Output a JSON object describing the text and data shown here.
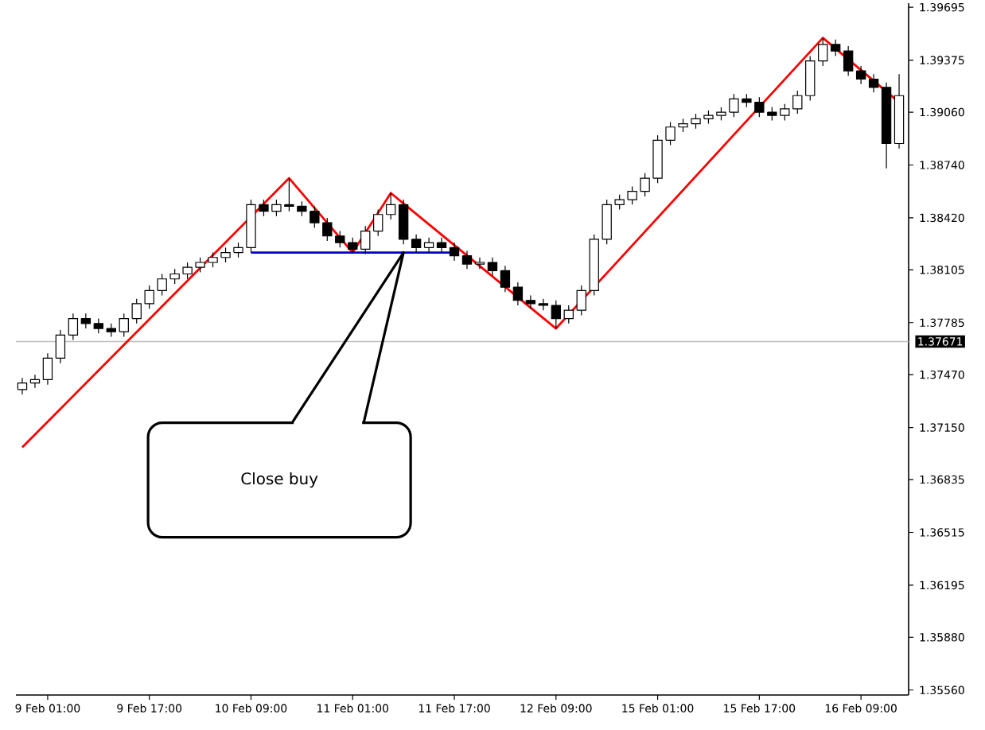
{
  "chart_data": {
    "type": "candlestick",
    "categories": [
      null,
      null,
      "9 Feb 01:00",
      null,
      null,
      null,
      null,
      null,
      null,
      null,
      "9 Feb 17:00",
      null,
      null,
      null,
      null,
      null,
      null,
      null,
      "10 Feb 09:00",
      null,
      null,
      null,
      null,
      null,
      null,
      null,
      "11 Feb 01:00",
      null,
      null,
      null,
      null,
      null,
      null,
      null,
      "11 Feb 17:00",
      null,
      null,
      null,
      null,
      null,
      null,
      null,
      "12 Feb 09:00",
      null,
      null,
      null,
      null,
      null,
      null,
      null,
      "15 Feb 01:00",
      null,
      null,
      null,
      null,
      null,
      null,
      null,
      "15 Feb 17:00",
      null,
      null,
      null,
      null,
      null,
      null,
      null,
      "16 Feb 09:00",
      null,
      null,
      null
    ],
    "ohlc": [
      [
        1.3738,
        1.3745,
        1.3735,
        1.3742
      ],
      [
        1.3742,
        1.3747,
        1.3739,
        1.3744
      ],
      [
        1.3744,
        1.376,
        1.3741,
        1.3757
      ],
      [
        1.3757,
        1.3774,
        1.3754,
        1.3771
      ],
      [
        1.3771,
        1.3784,
        1.3768,
        1.3781
      ],
      [
        1.3781,
        1.3784,
        1.3775,
        1.3778
      ],
      [
        1.3778,
        1.3781,
        1.3772,
        1.3775
      ],
      [
        1.3775,
        1.3778,
        1.377,
        1.3773
      ],
      [
        1.3773,
        1.3784,
        1.377,
        1.3781
      ],
      [
        1.3781,
        1.3793,
        1.3778,
        1.379
      ],
      [
        1.379,
        1.3801,
        1.3787,
        1.3798
      ],
      [
        1.3798,
        1.3808,
        1.3795,
        1.3805
      ],
      [
        1.3805,
        1.3811,
        1.3802,
        1.3808
      ],
      [
        1.3808,
        1.3815,
        1.3805,
        1.3812
      ],
      [
        1.3812,
        1.3818,
        1.3809,
        1.3815
      ],
      [
        1.3815,
        1.3821,
        1.3812,
        1.3818
      ],
      [
        1.3818,
        1.3824,
        1.3815,
        1.3821
      ],
      [
        1.3821,
        1.3827,
        1.3818,
        1.3824
      ],
      [
        1.3824,
        1.3853,
        1.3821,
        1.385
      ],
      [
        1.385,
        1.3853,
        1.3843,
        1.3846
      ],
      [
        1.3846,
        1.3853,
        1.3843,
        1.385
      ],
      [
        1.385,
        1.3866,
        1.3846,
        1.3849
      ],
      [
        1.3849,
        1.3852,
        1.3843,
        1.3846
      ],
      [
        1.3846,
        1.3849,
        1.3836,
        1.3839
      ],
      [
        1.3839,
        1.3842,
        1.3828,
        1.3831
      ],
      [
        1.3831,
        1.3834,
        1.3824,
        1.3827
      ],
      [
        1.3827,
        1.383,
        1.3821,
        1.3823
      ],
      [
        1.3823,
        1.3837,
        1.382,
        1.3834
      ],
      [
        1.3834,
        1.3847,
        1.3831,
        1.3844
      ],
      [
        1.3844,
        1.3857,
        1.3841,
        1.385
      ],
      [
        1.385,
        1.3853,
        1.3826,
        1.3829
      ],
      [
        1.3829,
        1.3832,
        1.3821,
        1.3824
      ],
      [
        1.3824,
        1.383,
        1.3821,
        1.3827
      ],
      [
        1.3827,
        1.383,
        1.3821,
        1.3824
      ],
      [
        1.3824,
        1.3827,
        1.3816,
        1.3819
      ],
      [
        1.3819,
        1.3822,
        1.3811,
        1.3814
      ],
      [
        1.3814,
        1.3818,
        1.3811,
        1.3815
      ],
      [
        1.3815,
        1.3818,
        1.3807,
        1.381
      ],
      [
        1.381,
        1.3813,
        1.3797,
        1.38
      ],
      [
        1.38,
        1.3803,
        1.3789,
        1.3792
      ],
      [
        1.3792,
        1.3795,
        1.3787,
        1.379
      ],
      [
        1.379,
        1.3793,
        1.3786,
        1.3789
      ],
      [
        1.3789,
        1.3792,
        1.3775,
        1.3781
      ],
      [
        1.3781,
        1.3789,
        1.3778,
        1.3786
      ],
      [
        1.3786,
        1.3801,
        1.3783,
        1.3798
      ],
      [
        1.3798,
        1.3832,
        1.3795,
        1.3829
      ],
      [
        1.3829,
        1.3853,
        1.3826,
        1.385
      ],
      [
        1.385,
        1.3856,
        1.3847,
        1.3853
      ],
      [
        1.3853,
        1.3861,
        1.385,
        1.3858
      ],
      [
        1.3858,
        1.3869,
        1.3855,
        1.3866
      ],
      [
        1.3866,
        1.3892,
        1.3863,
        1.3889
      ],
      [
        1.3889,
        1.39,
        1.3886,
        1.3897
      ],
      [
        1.3897,
        1.3902,
        1.3894,
        1.3899
      ],
      [
        1.3899,
        1.3905,
        1.3896,
        1.3902
      ],
      [
        1.3902,
        1.3907,
        1.3899,
        1.3904
      ],
      [
        1.3904,
        1.3909,
        1.3901,
        1.3906
      ],
      [
        1.3906,
        1.3917,
        1.3903,
        1.3914
      ],
      [
        1.3914,
        1.3917,
        1.3909,
        1.3912
      ],
      [
        1.3912,
        1.3915,
        1.3903,
        1.3906
      ],
      [
        1.3906,
        1.3909,
        1.3901,
        1.3904
      ],
      [
        1.3904,
        1.3911,
        1.3901,
        1.3908
      ],
      [
        1.3908,
        1.3919,
        1.3905,
        1.3916
      ],
      [
        1.3916,
        1.394,
        1.3913,
        1.3937
      ],
      [
        1.3937,
        1.3951,
        1.3934,
        1.3947
      ],
      [
        1.3947,
        1.395,
        1.394,
        1.3943
      ],
      [
        1.3943,
        1.3946,
        1.3928,
        1.3931
      ],
      [
        1.3931,
        1.3934,
        1.3923,
        1.3926
      ],
      [
        1.3926,
        1.3929,
        1.3918,
        1.3921
      ],
      [
        1.3921,
        1.3924,
        1.3872,
        1.3887
      ],
      [
        1.3887,
        1.3929,
        1.3884,
        1.3916
      ]
    ],
    "series": [
      {
        "type": "line",
        "color": "#ff0000",
        "values": [
          1.3703,
          null,
          null,
          null,
          null,
          null,
          null,
          null,
          null,
          null,
          null,
          null,
          null,
          null,
          null,
          null,
          null,
          null,
          null,
          null,
          null,
          1.3866,
          null,
          null,
          null,
          null,
          1.3821,
          null,
          null,
          1.3857,
          null,
          null,
          null,
          null,
          null,
          null,
          null,
          null,
          null,
          null,
          null,
          null,
          1.3775,
          null,
          null,
          null,
          null,
          null,
          null,
          null,
          null,
          null,
          null,
          null,
          null,
          null,
          null,
          null,
          null,
          null,
          null,
          null,
          null,
          1.3951,
          null,
          null,
          null,
          null,
          null,
          1.3912
        ]
      },
      {
        "type": "line",
        "color": "#0000cc",
        "values": [
          null,
          null,
          null,
          null,
          null,
          null,
          null,
          null,
          null,
          null,
          null,
          null,
          null,
          null,
          null,
          null,
          null,
          null,
          1.3821,
          null,
          null,
          null,
          null,
          null,
          null,
          null,
          null,
          null,
          null,
          null,
          null,
          null,
          null,
          null,
          1.3821,
          null,
          null,
          null,
          null,
          null,
          null,
          null,
          null,
          null,
          null,
          null,
          null,
          null,
          null,
          null,
          null,
          null,
          null,
          null,
          null,
          null,
          null,
          null,
          null,
          null,
          null,
          null,
          null,
          null,
          null,
          null,
          null,
          null,
          null,
          null
        ]
      }
    ],
    "ref_lines": [
      {
        "axis": "y",
        "value": 1.37671,
        "label": "1.37671",
        "color": "#c0c0c0"
      }
    ],
    "annotations": [
      "Close buy"
    ],
    "ylim": [
      1.3553,
      1.3972
    ],
    "yticks": [
      1.39695,
      1.39375,
      {
        "value": 1.3906,
        "label": "1.39060"
      },
      {
        "value": 1.3874,
        "label": "1.38740"
      },
      {
        "value": 1.3842,
        "label": "1.38420"
      },
      1.38105,
      1.37785,
      {
        "value": 1.3747,
        "label": "1.37470"
      },
      {
        "value": 1.3715,
        "label": "1.37150"
      },
      1.36835,
      1.36515,
      1.36195,
      {
        "value": 1.3588,
        "label": "1.35880"
      },
      {
        "value": 1.3556,
        "label": "1.35560"
      }
    ]
  }
}
